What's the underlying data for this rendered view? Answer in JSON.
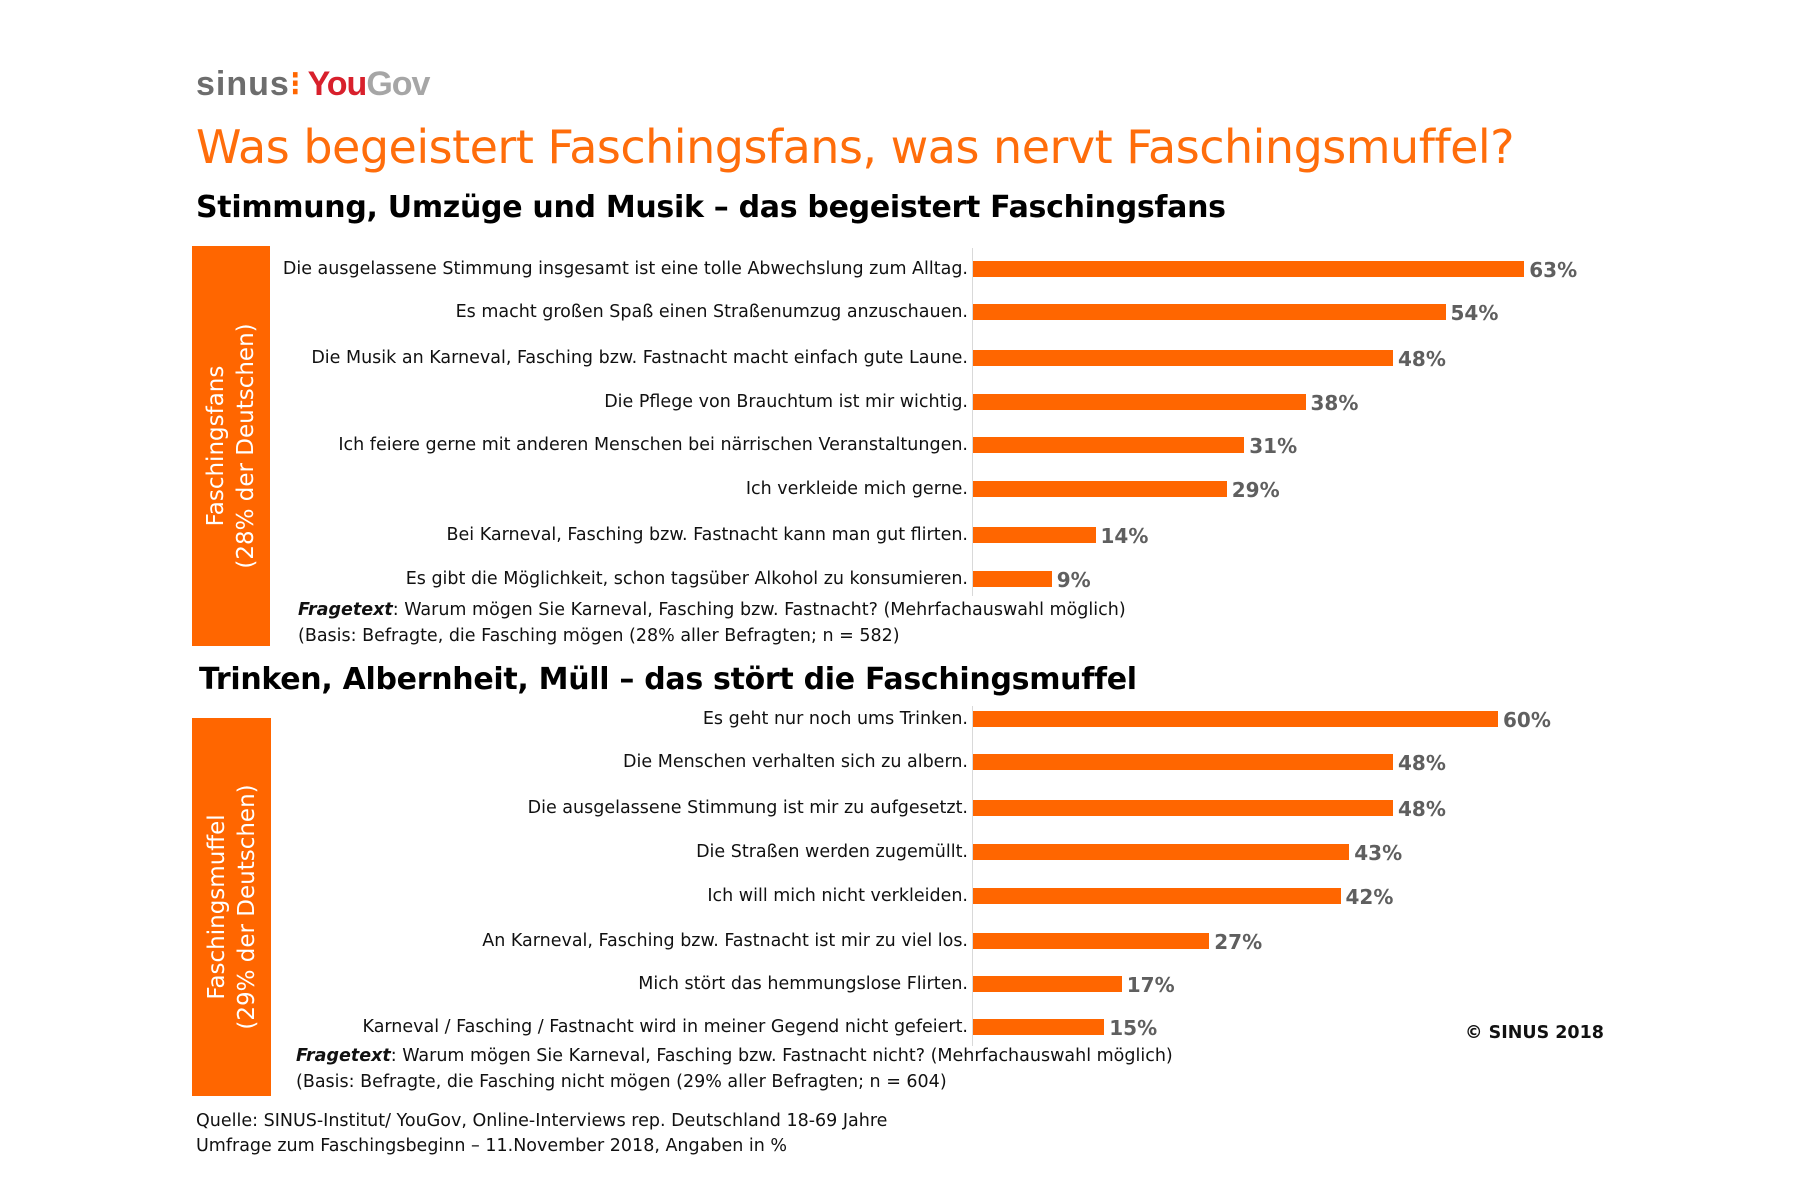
{
  "logo": {
    "part1": "sinus",
    "separator": "⁝",
    "part2a": "You",
    "part2b": "Gov"
  },
  "title": "Was begeistert Faschingsfans, was nervt Faschingsmuffel?",
  "colors": {
    "bar": "#ff6600",
    "title": "#ff6d0b",
    "value_label": "#5f5f5f"
  },
  "chart_data": [
    {
      "type": "bar",
      "orientation": "horizontal",
      "title": "Stimmung, Umzüge und Musik – das begeistert Faschingsfans",
      "group_label_line1": "Faschingsfans",
      "group_label_line2": "(28% der Deutschen)",
      "categories": [
        "Die ausgelassene Stimmung insgesamt ist eine tolle Abwechslung zum Alltag.",
        "Es macht großen Spaß einen Straßenumzug anzuschauen.",
        "Die Musik an Karneval, Fasching bzw. Fastnacht macht einfach gute Laune.",
        "Die Pflege von Brauchtum ist mir wichtig.",
        "Ich feiere gerne mit anderen Menschen bei närrischen Veranstaltungen.",
        "Ich verkleide mich gerne.",
        "Bei Karneval, Fasching bzw. Fastnacht kann man gut flirten.",
        "Es gibt die Möglichkeit, schon tagsüber Alkohol zu konsumieren."
      ],
      "values": [
        63,
        54,
        48,
        38,
        31,
        29,
        14,
        9
      ],
      "value_labels": [
        "63%",
        "54%",
        "48%",
        "38%",
        "31%",
        "29%",
        "14%",
        "9%"
      ],
      "question_label": "Fragetext",
      "question": ": Warum mögen Sie Karneval, Fasching bzw. Fastnacht? (Mehrfachauswahl möglich)",
      "basis": "(Basis: Befragte, die Fasching mögen (28% aller Befragten; n = 582)"
    },
    {
      "type": "bar",
      "orientation": "horizontal",
      "title": "Trinken, Albernheit, Müll – das stört die Faschingsmuffel",
      "group_label_line1": "Faschingsmuffel",
      "group_label_line2": "(29% der Deutschen)",
      "categories": [
        "Es geht nur noch ums Trinken.",
        "Die Menschen verhalten sich zu albern.",
        "Die ausgelassene Stimmung ist mir zu aufgesetzt.",
        "Die Straßen werden zugemüllt.",
        "Ich will mich nicht verkleiden.",
        "An Karneval, Fasching bzw. Fastnacht ist mir zu viel los.",
        "Mich stört das hemmungslose Flirten.",
        "Karneval / Fasching / Fastnacht wird in meiner Gegend nicht gefeiert."
      ],
      "values": [
        60,
        48,
        48,
        43,
        42,
        27,
        17,
        15
      ],
      "value_labels": [
        "60%",
        "48%",
        "48%",
        "43%",
        "42%",
        "27%",
        "17%",
        "15%"
      ],
      "question_label": "Fragetext",
      "question": ": Warum mögen Sie Karneval, Fasching bzw. Fastnacht nicht? (Mehrfachauswahl möglich)",
      "basis": "(Basis: Befragte, die Fasching nicht mögen (29% aller Befragten; n = 604)"
    }
  ],
  "source_line1": "Quelle: SINUS-Institut/ YouGov, Online-Interviews rep. Deutschland 18-69 Jahre",
  "source_line2": "Umfrage zum Faschingsbeginn – 11.November 2018, Angaben in %",
  "copyright": "© SINUS 2018"
}
